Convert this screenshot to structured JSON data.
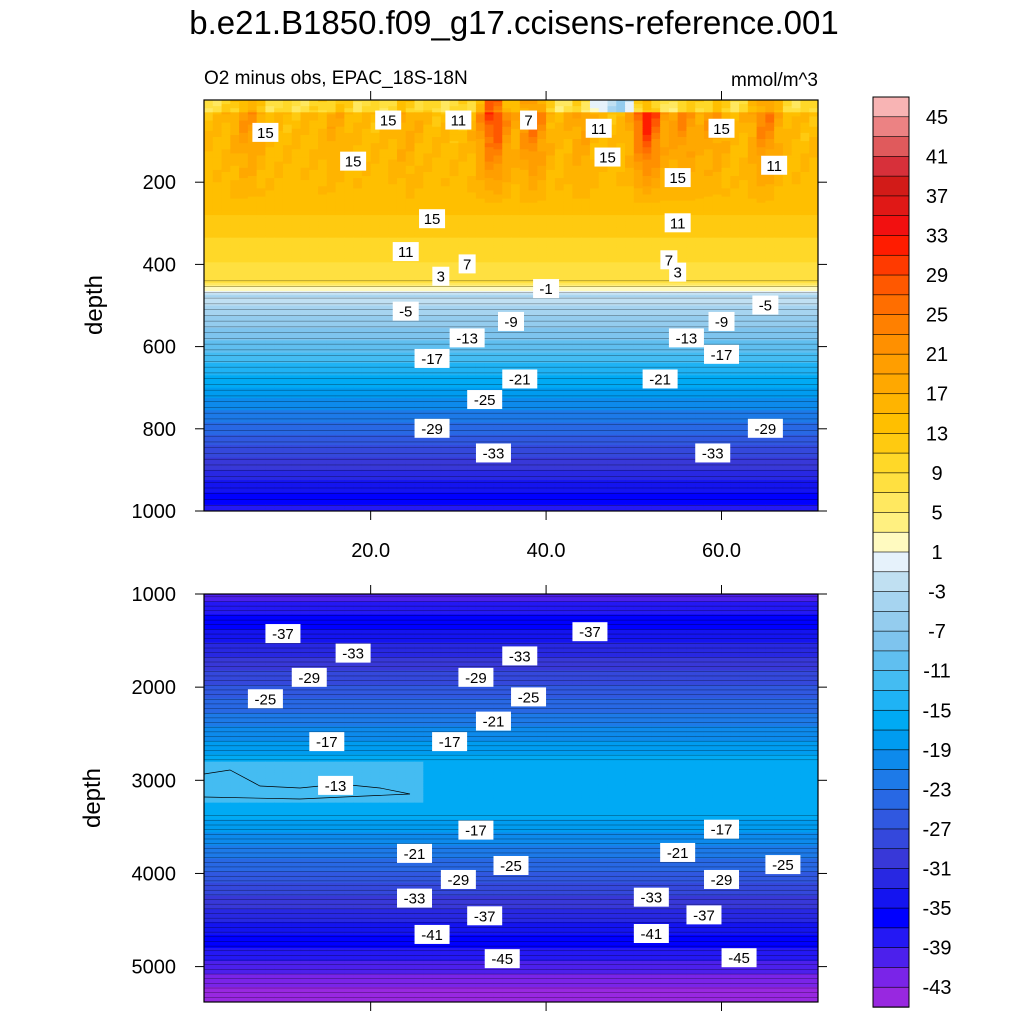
{
  "title": "b.e21.B1850.f09_g17.ccisens-reference.001",
  "chart_data": {
    "type": "heatmap",
    "title": "b.e21.B1850.f09_g17.ccisens-reference.001",
    "subtitle": "O2 minus obs, EPAC_18S-18N",
    "units": "mmol/m^3",
    "panels": [
      {
        "name": "upper",
        "xlabel": "",
        "ylabel": "depth",
        "xlim": [
          1,
          71
        ],
        "ylim": [
          1000,
          0
        ],
        "x_ticks": [
          "20.0",
          "40.0",
          "60.0"
        ],
        "y_ticks": [
          "200",
          "400",
          "600",
          "800",
          "1000"
        ],
        "contour_labels": [
          {
            "text": "15",
            "x": 8,
            "depth": 80
          },
          {
            "text": "15",
            "x": 22,
            "depth": 50
          },
          {
            "text": "11",
            "x": 30,
            "depth": 50
          },
          {
            "text": "7",
            "x": 38,
            "depth": 50
          },
          {
            "text": "11",
            "x": 46,
            "depth": 70
          },
          {
            "text": "15",
            "x": 60,
            "depth": 70
          },
          {
            "text": "15",
            "x": 18,
            "depth": 150
          },
          {
            "text": "15",
            "x": 47,
            "depth": 140
          },
          {
            "text": "15",
            "x": 55,
            "depth": 190
          },
          {
            "text": "11",
            "x": 66,
            "depth": 160
          },
          {
            "text": "15",
            "x": 27,
            "depth": 290
          },
          {
            "text": "11",
            "x": 55,
            "depth": 300
          },
          {
            "text": "11",
            "x": 24,
            "depth": 370
          },
          {
            "text": "7",
            "x": 31,
            "depth": 400
          },
          {
            "text": "7",
            "x": 54,
            "depth": 390
          },
          {
            "text": "3",
            "x": 28,
            "depth": 430
          },
          {
            "text": "3",
            "x": 55,
            "depth": 420
          },
          {
            "text": "-1",
            "x": 40,
            "depth": 460
          },
          {
            "text": "-5",
            "x": 24,
            "depth": 515
          },
          {
            "text": "-5",
            "x": 65,
            "depth": 500
          },
          {
            "text": "-9",
            "x": 36,
            "depth": 540
          },
          {
            "text": "-9",
            "x": 60,
            "depth": 540
          },
          {
            "text": "-13",
            "x": 31,
            "depth": 580
          },
          {
            "text": "-13",
            "x": 56,
            "depth": 580
          },
          {
            "text": "-17",
            "x": 27,
            "depth": 630
          },
          {
            "text": "-17",
            "x": 60,
            "depth": 620
          },
          {
            "text": "-21",
            "x": 37,
            "depth": 680
          },
          {
            "text": "-21",
            "x": 53,
            "depth": 680
          },
          {
            "text": "-25",
            "x": 33,
            "depth": 730
          },
          {
            "text": "-29",
            "x": 27,
            "depth": 800
          },
          {
            "text": "-29",
            "x": 65,
            "depth": 800
          },
          {
            "text": "-33",
            "x": 34,
            "depth": 860
          },
          {
            "text": "-33",
            "x": 59,
            "depth": 860
          }
        ]
      },
      {
        "name": "lower",
        "xlabel": "",
        "ylabel": "depth",
        "xlim": [
          1,
          71
        ],
        "ylim": [
          5380,
          1000
        ],
        "y_ticks": [
          "1000",
          "2000",
          "3000",
          "4000",
          "5000"
        ],
        "contour_labels": [
          {
            "text": "-37",
            "x": 10,
            "depth": 1430
          },
          {
            "text": "-37",
            "x": 45,
            "depth": 1410
          },
          {
            "text": "-33",
            "x": 18,
            "depth": 1640
          },
          {
            "text": "-33",
            "x": 37,
            "depth": 1670
          },
          {
            "text": "-29",
            "x": 13,
            "depth": 1900
          },
          {
            "text": "-29",
            "x": 32,
            "depth": 1900
          },
          {
            "text": "-25",
            "x": 8,
            "depth": 2130
          },
          {
            "text": "-25",
            "x": 38,
            "depth": 2110
          },
          {
            "text": "-21",
            "x": 34,
            "depth": 2370
          },
          {
            "text": "-17",
            "x": 15,
            "depth": 2590
          },
          {
            "text": "-17",
            "x": 29,
            "depth": 2590
          },
          {
            "text": "-13",
            "x": 16,
            "depth": 3060
          },
          {
            "text": "-17",
            "x": 32,
            "depth": 3540
          },
          {
            "text": "-17",
            "x": 60,
            "depth": 3530
          },
          {
            "text": "-21",
            "x": 25,
            "depth": 3790
          },
          {
            "text": "-21",
            "x": 55,
            "depth": 3780
          },
          {
            "text": "-25",
            "x": 36,
            "depth": 3920
          },
          {
            "text": "-25",
            "x": 67,
            "depth": 3910
          },
          {
            "text": "-29",
            "x": 30,
            "depth": 4070
          },
          {
            "text": "-29",
            "x": 60,
            "depth": 4070
          },
          {
            "text": "-33",
            "x": 25,
            "depth": 4270
          },
          {
            "text": "-33",
            "x": 52,
            "depth": 4260
          },
          {
            "text": "-37",
            "x": 33,
            "depth": 4460
          },
          {
            "text": "-37",
            "x": 58,
            "depth": 4450
          },
          {
            "text": "-41",
            "x": 27,
            "depth": 4660
          },
          {
            "text": "-41",
            "x": 52,
            "depth": 4650
          },
          {
            "text": "-45",
            "x": 35,
            "depth": 4920
          },
          {
            "text": "-45",
            "x": 62,
            "depth": 4910
          }
        ]
      }
    ],
    "colorbar": {
      "levels": [
        45,
        43,
        41,
        39,
        37,
        35,
        33,
        31,
        29,
        27,
        25,
        23,
        21,
        19,
        17,
        15,
        13,
        11,
        9,
        7,
        5,
        3,
        1,
        -1,
        -3,
        -5,
        -7,
        -9,
        -11,
        -13,
        -15,
        -17,
        -19,
        -21,
        -23,
        -25,
        -27,
        -29,
        -31,
        -33,
        -35,
        -37,
        -39,
        -41,
        -43
      ],
      "tick_labels": [
        "45",
        "41",
        "37",
        "33",
        "29",
        "25",
        "21",
        "17",
        "13",
        "9",
        "5",
        "1",
        "-3",
        "-7",
        "-11",
        "-15",
        "-19",
        "-23",
        "-27",
        "-31",
        "-35",
        "-39",
        "-43"
      ],
      "colors": [
        "#f8b4b4",
        "#ec8283",
        "#e05a5c",
        "#d7303a",
        "#d21b18",
        "#e01816",
        "#f21010",
        "#ff1c00",
        "#ff3a00",
        "#ff5800",
        "#ff6e00",
        "#ff8000",
        "#ff9000",
        "#ff9e00",
        "#ffa800",
        "#ffb400",
        "#ffbf00",
        "#ffca10",
        "#ffd828",
        "#ffe040",
        "#ffe860",
        "#fff080",
        "#fffac0",
        "#e6f2fb",
        "#c0e0f2",
        "#a6d4f0",
        "#94ccee",
        "#7ec4ee",
        "#60bff0",
        "#44bcf2",
        "#1fb3f5",
        "#00aaf4",
        "#009cf0",
        "#0d8aec",
        "#1d7ae8",
        "#2868e4",
        "#3058e0",
        "#3448dc",
        "#3838d8",
        "#2828e2",
        "#1414f0",
        "#0000ff",
        "#2418f4",
        "#4c20ec",
        "#7a24e8",
        "#9828e0"
      ]
    }
  }
}
